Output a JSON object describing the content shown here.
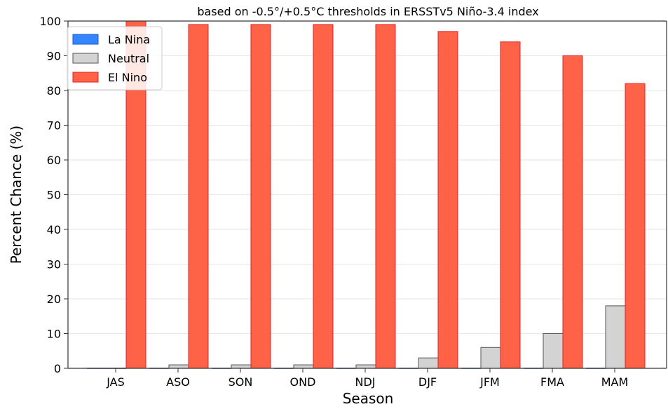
{
  "chart_data": {
    "type": "bar",
    "title": "based on -0.5°/+0.5°C thresholds in ERSSTv5 Niño-3.4 index",
    "xlabel": "Season",
    "ylabel": "Percent Chance (%)",
    "ylim": [
      0,
      100
    ],
    "yticks": [
      0,
      10,
      20,
      30,
      40,
      50,
      60,
      70,
      80,
      90,
      100
    ],
    "grid": "horizontal",
    "legend_position": "top-left",
    "categories": [
      "JAS",
      "ASO",
      "SON",
      "OND",
      "NDJ",
      "DJF",
      "JFM",
      "FMA",
      "MAM"
    ],
    "series": [
      {
        "name": "La Nina",
        "color": "#3386ff",
        "edge": "#2255cc",
        "values": [
          0,
          0,
          0,
          0,
          0,
          0,
          0,
          0,
          0
        ]
      },
      {
        "name": "Neutral",
        "color": "#d3d3d3",
        "edge": "#555555",
        "values": [
          0,
          1,
          1,
          1,
          1,
          3,
          6,
          10,
          18
        ]
      },
      {
        "name": "El Nino",
        "color": "#ff6347",
        "edge": "#e0202a",
        "values": [
          100,
          99,
          99,
          99,
          99,
          97,
          94,
          90,
          82
        ]
      }
    ]
  }
}
